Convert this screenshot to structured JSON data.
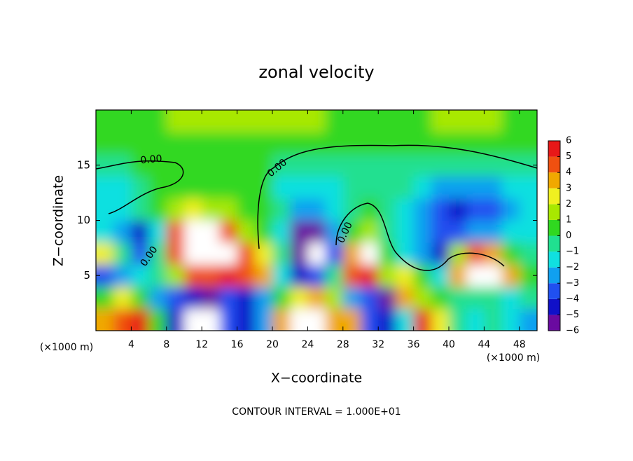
{
  "chart_data": {
    "type": "heatmap",
    "title": "zonal velocity",
    "x_label": "X−coordinate",
    "y_label": "Z−coordinate",
    "x_unit": "(×1000 m)",
    "footer": "CONTOUR INTERVAL = 1.000E+01",
    "contour_label": "0.00",
    "xlim": [
      0,
      50
    ],
    "ylim": [
      0,
      20
    ],
    "xticks": [
      4,
      8,
      12,
      16,
      20,
      24,
      28,
      32,
      36,
      40,
      44,
      48
    ],
    "yticks": [
      5,
      10,
      15
    ],
    "x": [
      1,
      3,
      5,
      7,
      9,
      11,
      13,
      15,
      17,
      19,
      21,
      23,
      25,
      27,
      29,
      31,
      33,
      35,
      37,
      39,
      41,
      43,
      45,
      47,
      49
    ],
    "y": [
      1,
      3,
      5,
      7,
      9,
      11,
      13,
      15,
      17,
      19
    ],
    "z": [
      [
        4,
        5,
        6,
        1,
        -4,
        8,
        8,
        -3,
        -4,
        -2,
        4,
        7,
        8,
        4,
        4,
        -3,
        -4,
        -1,
        6,
        3,
        -0.5,
        -1,
        -0.5,
        -1,
        -2
      ],
      [
        0.5,
        3,
        1,
        -2,
        -3,
        -4,
        -5,
        -3,
        -4,
        -2,
        1,
        3,
        4,
        2,
        -2,
        -3,
        -5,
        4,
        2,
        1,
        0,
        -0.5,
        0,
        -1,
        -0.5
      ],
      [
        -3,
        -2,
        -1,
        -0.5,
        2,
        5,
        5,
        6,
        5,
        4,
        -1,
        -4,
        -3,
        0,
        5,
        6,
        2,
        3,
        1,
        -1,
        4,
        8,
        8,
        4,
        1
      ],
      [
        3,
        0,
        -3,
        -0.5,
        5,
        8,
        8,
        7,
        5,
        3,
        -0.5,
        -5,
        7,
        -3,
        4,
        7,
        1,
        -1,
        -2,
        -4,
        2,
        5,
        4,
        1,
        -0.5
      ],
      [
        -1,
        -2,
        -4.5,
        -1,
        5,
        7,
        7,
        5,
        2,
        0.5,
        -1,
        -5,
        -5,
        -2,
        0.5,
        1.5,
        0,
        -1.5,
        -2.5,
        -3,
        -3,
        -2.5,
        -2,
        -1.5,
        -1
      ],
      [
        -1.5,
        -1,
        -0.5,
        0.5,
        1.5,
        2.5,
        2,
        1.5,
        0.8,
        0.2,
        -0.5,
        -2,
        -2,
        -1,
        -0.5,
        0.3,
        -0.5,
        -1.5,
        -2.5,
        -3.5,
        -4,
        -3.5,
        -3,
        -2,
        -1
      ],
      [
        -1.5,
        -1.5,
        -0.5,
        0.3,
        0.6,
        1,
        1,
        1,
        0.8,
        0.5,
        -1,
        -1,
        -1,
        -1,
        -0.8,
        -0.5,
        -0.5,
        -0.5,
        -1,
        -2,
        -2,
        -2,
        -2,
        -1.5,
        -1
      ],
      [
        -0.5,
        -0.3,
        0.3,
        0.3,
        0.4,
        0.5,
        0.5,
        0.5,
        0.5,
        0.2,
        -0.5,
        -0.5,
        -0.5,
        -0.5,
        -0.5,
        -0.5,
        -0.5,
        -0.5,
        -0.5,
        -0.5,
        -0.5,
        -0.5,
        -0.5,
        -0.5,
        -0.5
      ],
      [
        0.5,
        0.5,
        0.6,
        0.6,
        0.6,
        0.6,
        0.6,
        0.6,
        0.6,
        0.6,
        0.5,
        0.5,
        0.5,
        0.4,
        0.4,
        0.4,
        0.3,
        0.3,
        0.3,
        0.3,
        0.3,
        0.4,
        0.4,
        0.5,
        0.5
      ],
      [
        0.8,
        0.9,
        1,
        1,
        1.1,
        1.2,
        1.4,
        1.6,
        1.8,
        1.8,
        1.6,
        1.4,
        1.2,
        1,
        1,
        0.9,
        0.9,
        1,
        1,
        1.1,
        1.2,
        1.2,
        1.1,
        1,
        0.9
      ]
    ],
    "levels": [
      -6,
      -5,
      -4,
      -3,
      -2,
      -1,
      0,
      1,
      2,
      3,
      4,
      5,
      6
    ],
    "level_ticks": [
      {
        "value": -6,
        "label": "−6"
      },
      {
        "value": -5,
        "label": "−5"
      },
      {
        "value": -4,
        "label": "−4"
      },
      {
        "value": -3,
        "label": "−3"
      },
      {
        "value": -2,
        "label": "−2"
      },
      {
        "value": -1,
        "label": "−1"
      },
      0,
      1,
      2,
      3,
      4,
      5,
      6
    ],
    "colors": [
      "#6a0aa0",
      "#1010c8",
      "#2050f0",
      "#10a0f0",
      "#10e0e0",
      "#20e090",
      "#30d820",
      "#a8e800",
      "#f0f020",
      "#f0a800",
      "#f05010",
      "#e81818",
      "#f07878"
    ],
    "over_color": "#ffffff"
  }
}
